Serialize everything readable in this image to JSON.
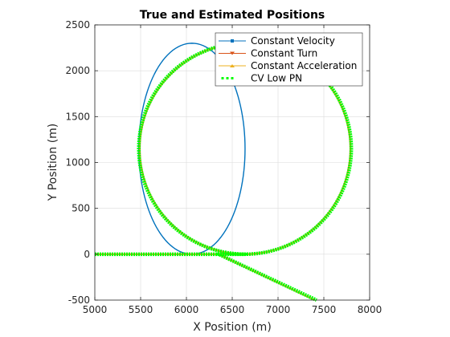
{
  "chart_data": {
    "type": "line",
    "title": "True and Estimated Positions",
    "xlabel": "X Position (m)",
    "ylabel": "Y Position (m)",
    "xlim": [
      5000,
      8000
    ],
    "ylim": [
      -500,
      2500
    ],
    "xticks": [
      5000,
      5500,
      6000,
      6500,
      7000,
      7500,
      8000
    ],
    "yticks": [
      -500,
      0,
      500,
      1000,
      1500,
      2000,
      2500
    ],
    "grid": true,
    "legend_position": "top-right",
    "circle": {
      "center_x": 6640,
      "center_y": 1150,
      "radius": 1150
    },
    "series": [
      {
        "name": "Constant Velocity",
        "color": "#0072BD",
        "marker": "square",
        "points": [
          [
            5000,
            0
          ],
          [
            6700,
            0
          ],
          [
            6640,
            0
          ],
          [
            5750,
            100
          ],
          [
            5480,
            1150
          ],
          [
            6640,
            2300
          ],
          [
            7790,
            1150
          ],
          [
            6640,
            0
          ],
          [
            6350,
            0
          ],
          [
            7400,
            -500
          ]
        ]
      },
      {
        "name": "Constant Turn",
        "color": "#D95319",
        "marker": "triangle-down",
        "points": [
          [
            5000,
            0
          ],
          [
            6640,
            0
          ],
          [
            5490,
            1150
          ],
          [
            6640,
            2300
          ],
          [
            7790,
            1150
          ],
          [
            6640,
            0
          ],
          [
            6350,
            0
          ],
          [
            7400,
            -500
          ]
        ]
      },
      {
        "name": "Constant Acceleration",
        "color": "#EDB120",
        "marker": "triangle-up",
        "points": [
          [
            5000,
            0
          ],
          [
            6640,
            0
          ],
          [
            5490,
            1150
          ],
          [
            6640,
            2300
          ],
          [
            7790,
            1150
          ],
          [
            6640,
            0
          ],
          [
            6120,
            100
          ],
          [
            6350,
            0
          ],
          [
            7400,
            -500
          ]
        ]
      },
      {
        "name": "CV Low PN",
        "color": "#00FF00",
        "marker": "square",
        "points": [
          [
            5000,
            0
          ],
          [
            6640,
            0
          ],
          [
            5480,
            1150
          ],
          [
            6640,
            2300
          ],
          [
            7800,
            1150
          ],
          [
            6640,
            0
          ],
          [
            6350,
            0
          ],
          [
            7420,
            -500
          ]
        ]
      }
    ]
  }
}
